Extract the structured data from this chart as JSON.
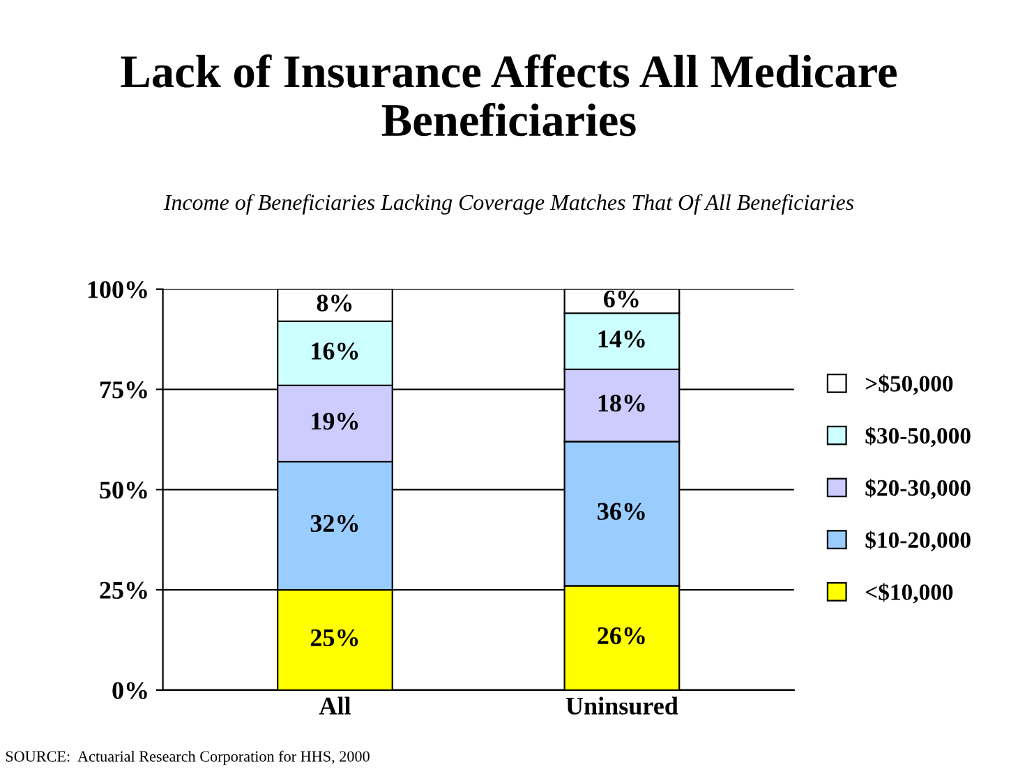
{
  "chart_data": {
    "type": "bar",
    "stacked": true,
    "title": "Lack of Insurance Affects All Medicare Beneficiaries",
    "subtitle": "Income of Beneficiaries Lacking Coverage Matches That Of All Beneficiaries",
    "categories": [
      "All",
      "Uninsured"
    ],
    "series": [
      {
        "name": "<$10,000",
        "color": "#ffff00",
        "values": [
          25,
          26
        ],
        "value_labels": [
          "25%",
          "26%"
        ]
      },
      {
        "name": "$10-20,000",
        "color": "#99ccff",
        "values": [
          32,
          36
        ],
        "value_labels": [
          "32%",
          "36%"
        ]
      },
      {
        "name": "$20-30,000",
        "color": "#ccccff",
        "values": [
          19,
          18
        ],
        "value_labels": [
          "19%",
          "18%"
        ]
      },
      {
        "name": "$30-50,000",
        "color": "#ccffff",
        "values": [
          16,
          14
        ],
        "value_labels": [
          "16%",
          "14%"
        ]
      },
      {
        "name": ">$50,000",
        "color": "#ffffff",
        "values": [
          8,
          6
        ],
        "value_labels": [
          "8%",
          "6%"
        ]
      }
    ],
    "ylim": [
      0,
      100
    ],
    "yticks": [
      {
        "value": 0,
        "label": "0%"
      },
      {
        "value": 25,
        "label": "25%"
      },
      {
        "value": 50,
        "label": "50%"
      },
      {
        "value": 75,
        "label": "75%"
      },
      {
        "value": 100,
        "label": "100%"
      }
    ],
    "grid": "y",
    "legend": "right",
    "annotations": [
      "SOURCE:  Actuarial Research Corporation for HHS, 2000"
    ]
  }
}
